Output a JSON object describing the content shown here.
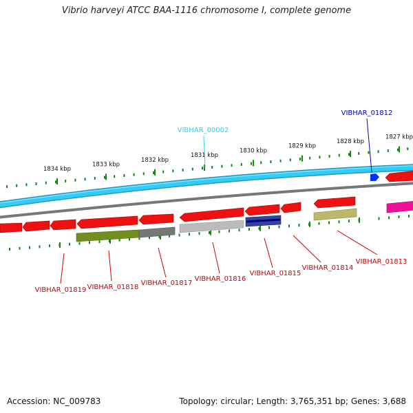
{
  "title": "Vibrio harveyi ATCC BAA-1116 chromosome I, complete genome",
  "footer": {
    "accession": "Accession: NC_009783",
    "stats": "Topology: circular; Length: 3,765,351 bp; Genes: 3,688"
  },
  "outer_ticks": [
    {
      "label": "1834 kbp"
    },
    {
      "label": "1833 kbp"
    },
    {
      "label": "1832 kbp"
    },
    {
      "label": "1831 kbp"
    },
    {
      "label": "1830 kbp"
    },
    {
      "label": "1829 kbp"
    },
    {
      "label": "1828 kbp"
    },
    {
      "label": "1827 kbp"
    }
  ],
  "top_callouts": [
    {
      "label": "VIBHAR_00002",
      "color": "#33ccee"
    },
    {
      "label": "VIBHAR_01812",
      "color": "#0000aa"
    }
  ],
  "bottom_callouts": [
    {
      "label": "VIBHAR_01819",
      "color": "#cc0000"
    },
    {
      "label": "VIBHAR_01818",
      "color": "#cc0000"
    },
    {
      "label": "VIBHAR_01817",
      "color": "#cc0000"
    },
    {
      "label": "VIBHAR_01816",
      "color": "#cc0000"
    },
    {
      "label": "VIBHAR_01815",
      "color": "#cc0000"
    },
    {
      "label": "VIBHAR_01814",
      "color": "#cc0000"
    },
    {
      "label": "VIBHAR_01813",
      "color": "#cc0000"
    }
  ],
  "colors": {
    "backbone": "#33ccf5",
    "backbone_edge": "#2299c4",
    "gene_red": "#ee1111",
    "tick_green": "#118811",
    "olive": "#6f8f1f",
    "grey_bar": "#777777",
    "light_grey": "#bbbbbb",
    "navy": "#334499",
    "khaki": "#bcb86a",
    "magenta": "#ee1199",
    "blue_marker": "#0033ff"
  }
}
